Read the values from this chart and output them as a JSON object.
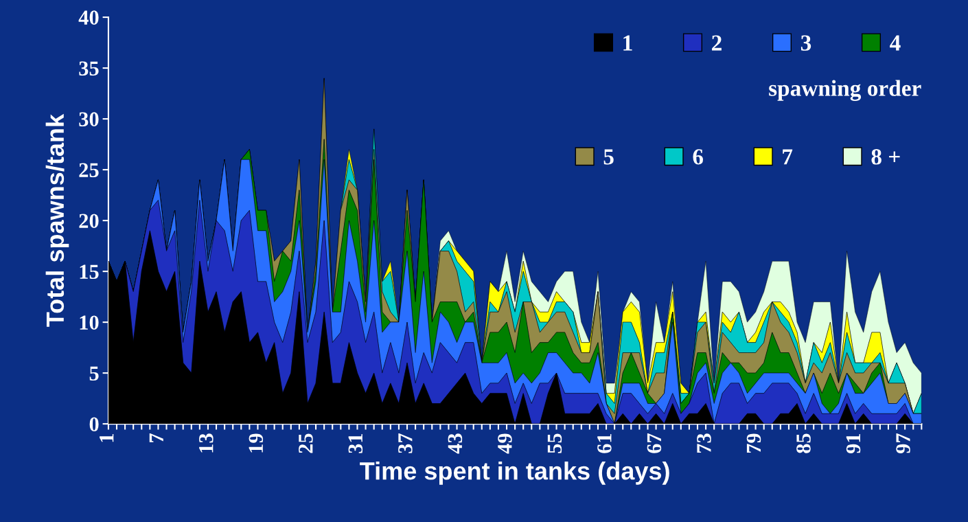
{
  "chart_data": {
    "type": "area",
    "stacked": true,
    "xlabel": "Time spent in tanks (days)",
    "ylabel": "Total spawns/tank",
    "legend_title": "spawning order",
    "categories": [
      "1",
      null,
      null,
      null,
      null,
      null,
      "7",
      null,
      null,
      null,
      null,
      null,
      "13",
      null,
      null,
      null,
      null,
      null,
      "19",
      null,
      null,
      null,
      null,
      null,
      "25",
      null,
      null,
      null,
      null,
      null,
      "31",
      null,
      null,
      null,
      null,
      null,
      "37",
      null,
      null,
      null,
      null,
      null,
      "43",
      null,
      null,
      null,
      null,
      null,
      "49",
      null,
      null,
      null,
      null,
      null,
      "55",
      null,
      null,
      null,
      null,
      null,
      "61",
      null,
      null,
      null,
      null,
      null,
      "67",
      null,
      null,
      null,
      null,
      null,
      "73",
      null,
      null,
      null,
      null,
      null,
      "79",
      null,
      null,
      null,
      null,
      null,
      "85",
      null,
      null,
      null,
      null,
      null,
      "91",
      null,
      null,
      null,
      null,
      null,
      "97",
      null,
      null
    ],
    "ylim": [
      0,
      40
    ],
    "yticks": [
      0,
      5,
      10,
      15,
      20,
      25,
      30,
      35,
      40
    ],
    "grid": false,
    "legend": "top right",
    "series": [
      {
        "name": "1",
        "color": "#000000",
        "values": [
          16,
          14,
          16,
          8,
          15,
          19,
          15,
          13,
          15,
          6,
          5,
          16,
          11,
          13,
          9,
          12,
          13,
          8,
          9,
          6,
          8,
          3,
          5,
          13,
          2,
          4,
          11,
          4,
          4,
          8,
          5,
          3,
          5,
          2,
          4,
          2,
          6,
          2,
          4,
          2,
          2,
          3,
          4,
          5,
          3,
          2,
          3,
          3,
          3,
          0,
          3,
          0,
          0,
          3,
          5,
          1,
          1,
          1,
          1,
          2,
          0,
          0,
          1,
          0,
          1,
          0,
          1,
          0,
          2,
          0,
          1,
          1,
          2,
          0,
          0,
          0,
          0,
          1,
          1,
          0,
          0,
          1,
          1,
          2,
          0,
          1,
          0,
          0,
          0,
          2,
          0,
          1,
          0,
          0,
          0,
          0,
          1,
          0,
          0
        ]
      },
      {
        "name": "2",
        "color": "#1f2fbf",
        "values": [
          0,
          0,
          0,
          5,
          2,
          2,
          7,
          4,
          4,
          2,
          8,
          6,
          4,
          7,
          10,
          3,
          7,
          13,
          5,
          8,
          2,
          5,
          6,
          4,
          6,
          7,
          9,
          4,
          5,
          6,
          7,
          5,
          6,
          3,
          4,
          3,
          4,
          2,
          3,
          3,
          6,
          4,
          2,
          3,
          5,
          1,
          1,
          1,
          2,
          2,
          1,
          2,
          4,
          1,
          0,
          2,
          2,
          2,
          2,
          1,
          1,
          0,
          2,
          3,
          1,
          1,
          1,
          1,
          1,
          1,
          1,
          3,
          3,
          0,
          3,
          4,
          4,
          1,
          2,
          3,
          4,
          3,
          3,
          1,
          1,
          2,
          1,
          1,
          1,
          1,
          1,
          1,
          1,
          1,
          1,
          1,
          1,
          0,
          0
        ]
      },
      {
        "name": "3",
        "color": "#2a6fff",
        "values": [
          0,
          0,
          0,
          0,
          0,
          0,
          2,
          0,
          2,
          1,
          1,
          2,
          1,
          0,
          7,
          2,
          6,
          5,
          5,
          5,
          2,
          5,
          4,
          3,
          1,
          3,
          6,
          3,
          2,
          6,
          4,
          2,
          9,
          4,
          2,
          5,
          7,
          3,
          8,
          1,
          3,
          3,
          2,
          2,
          2,
          3,
          2,
          2,
          2,
          2,
          1,
          2,
          1,
          3,
          2,
          3,
          2,
          2,
          1,
          4,
          1,
          0,
          1,
          1,
          2,
          1,
          0,
          2,
          7,
          0,
          0,
          1,
          1,
          2,
          2,
          2,
          1,
          1,
          1,
          2,
          1,
          1,
          1,
          1,
          2,
          2,
          1,
          0,
          1,
          2,
          2,
          1,
          3,
          4,
          1,
          1,
          1,
          1,
          1
        ]
      },
      {
        "name": "4",
        "color": "#008000",
        "values": [
          0,
          0,
          0,
          0,
          0,
          0,
          0,
          0,
          0,
          0,
          0,
          0,
          0,
          0,
          0,
          0,
          0,
          1,
          2,
          2,
          2,
          4,
          1,
          3,
          0,
          1,
          2,
          0,
          6,
          3,
          5,
          1,
          6,
          2,
          0,
          0,
          4,
          5,
          9,
          4,
          1,
          2,
          4,
          0,
          1,
          0,
          3,
          3,
          3,
          3,
          7,
          3,
          3,
          1,
          2,
          3,
          2,
          1,
          2,
          1,
          0,
          0,
          1,
          3,
          1,
          1,
          0,
          0,
          1,
          1,
          1,
          2,
          1,
          1,
          2,
          0,
          1,
          2,
          1,
          1,
          4,
          2,
          2,
          1,
          0,
          0,
          1,
          4,
          1,
          0,
          1,
          0,
          1,
          1,
          0,
          0,
          0,
          0,
          0
        ]
      },
      {
        "name": "5",
        "color": "#948a48",
        "values": [
          0,
          0,
          0,
          0,
          0,
          0,
          0,
          0,
          0,
          0,
          0,
          0,
          0,
          0,
          0,
          0,
          0,
          0,
          0,
          0,
          2,
          0,
          2,
          3,
          0,
          1,
          6,
          0,
          4,
          1,
          2,
          1,
          1,
          2,
          1,
          0,
          2,
          0,
          0,
          0,
          5,
          5,
          3,
          1,
          1,
          0,
          2,
          2,
          3,
          2,
          0,
          5,
          1,
          2,
          2,
          2,
          2,
          1,
          1,
          5,
          0,
          1,
          2,
          0,
          2,
          0,
          3,
          2,
          0,
          0,
          0,
          2,
          3,
          0,
          2,
          2,
          1,
          2,
          2,
          2,
          3,
          3,
          2,
          2,
          1,
          1,
          2,
          2,
          1,
          2,
          1,
          2,
          1,
          0,
          2,
          2,
          1,
          0,
          0
        ]
      },
      {
        "name": "6",
        "color": "#00c8c8",
        "values": [
          0,
          0,
          0,
          0,
          0,
          0,
          0,
          0,
          0,
          0,
          0,
          0,
          0,
          0,
          0,
          0,
          0,
          0,
          0,
          0,
          0,
          0,
          0,
          0,
          0,
          0,
          0,
          0,
          0,
          2,
          0,
          0,
          2,
          1,
          4,
          0,
          0,
          0,
          0,
          0,
          0,
          1,
          1,
          4,
          2,
          0,
          1,
          0,
          1,
          2,
          3,
          0,
          1,
          0,
          1,
          1,
          2,
          0,
          0,
          0,
          1,
          1,
          3,
          3,
          1,
          0,
          2,
          2,
          0,
          1,
          0,
          1,
          0,
          1,
          1,
          1,
          4,
          1,
          1,
          2,
          0,
          1,
          1,
          1,
          0,
          2,
          1,
          1,
          0,
          2,
          1,
          1,
          0,
          1,
          0,
          2,
          0,
          0,
          2
        ]
      },
      {
        "name": "7",
        "color": "#ffff00",
        "values": [
          null,
          null,
          null,
          null,
          null,
          null,
          null,
          null,
          null,
          null,
          null,
          null,
          null,
          null,
          null,
          null,
          null,
          null,
          null,
          null,
          null,
          null,
          null,
          null,
          null,
          null,
          null,
          null,
          0,
          1,
          0,
          0,
          0,
          0,
          1,
          0,
          0,
          0,
          0,
          0,
          0,
          0,
          1,
          1,
          1,
          0,
          2,
          2,
          0,
          0,
          1,
          0,
          1,
          1,
          1,
          0,
          0,
          1,
          1,
          0,
          0,
          1,
          1,
          2,
          3,
          1,
          1,
          1,
          2,
          1,
          0,
          0,
          1,
          0,
          1,
          1,
          0,
          0,
          1,
          1,
          0,
          1,
          1,
          1,
          0,
          0,
          1,
          2,
          0,
          2,
          0,
          0,
          3,
          2,
          0,
          0,
          0,
          0,
          0
        ]
      },
      {
        "name": "8 +",
        "color": "#e0ffe0",
        "values": [
          null,
          null,
          null,
          null,
          null,
          null,
          null,
          null,
          null,
          null,
          null,
          null,
          null,
          null,
          null,
          null,
          null,
          null,
          null,
          null,
          null,
          null,
          null,
          null,
          null,
          null,
          null,
          null,
          null,
          null,
          null,
          null,
          null,
          null,
          null,
          null,
          null,
          null,
          null,
          0,
          1,
          1,
          0,
          0,
          0,
          0,
          0,
          0,
          3,
          1,
          1,
          2,
          2,
          1,
          1,
          3,
          4,
          2,
          0,
          2,
          1,
          1,
          0,
          1,
          1,
          0,
          4,
          0,
          1,
          0,
          0,
          0,
          5,
          0,
          3,
          4,
          2,
          2,
          2,
          2,
          4,
          4,
          5,
          1,
          4,
          4,
          5,
          2,
          0,
          6,
          5,
          3,
          4,
          6,
          6,
          1,
          4,
          5,
          2
        ]
      }
    ]
  }
}
